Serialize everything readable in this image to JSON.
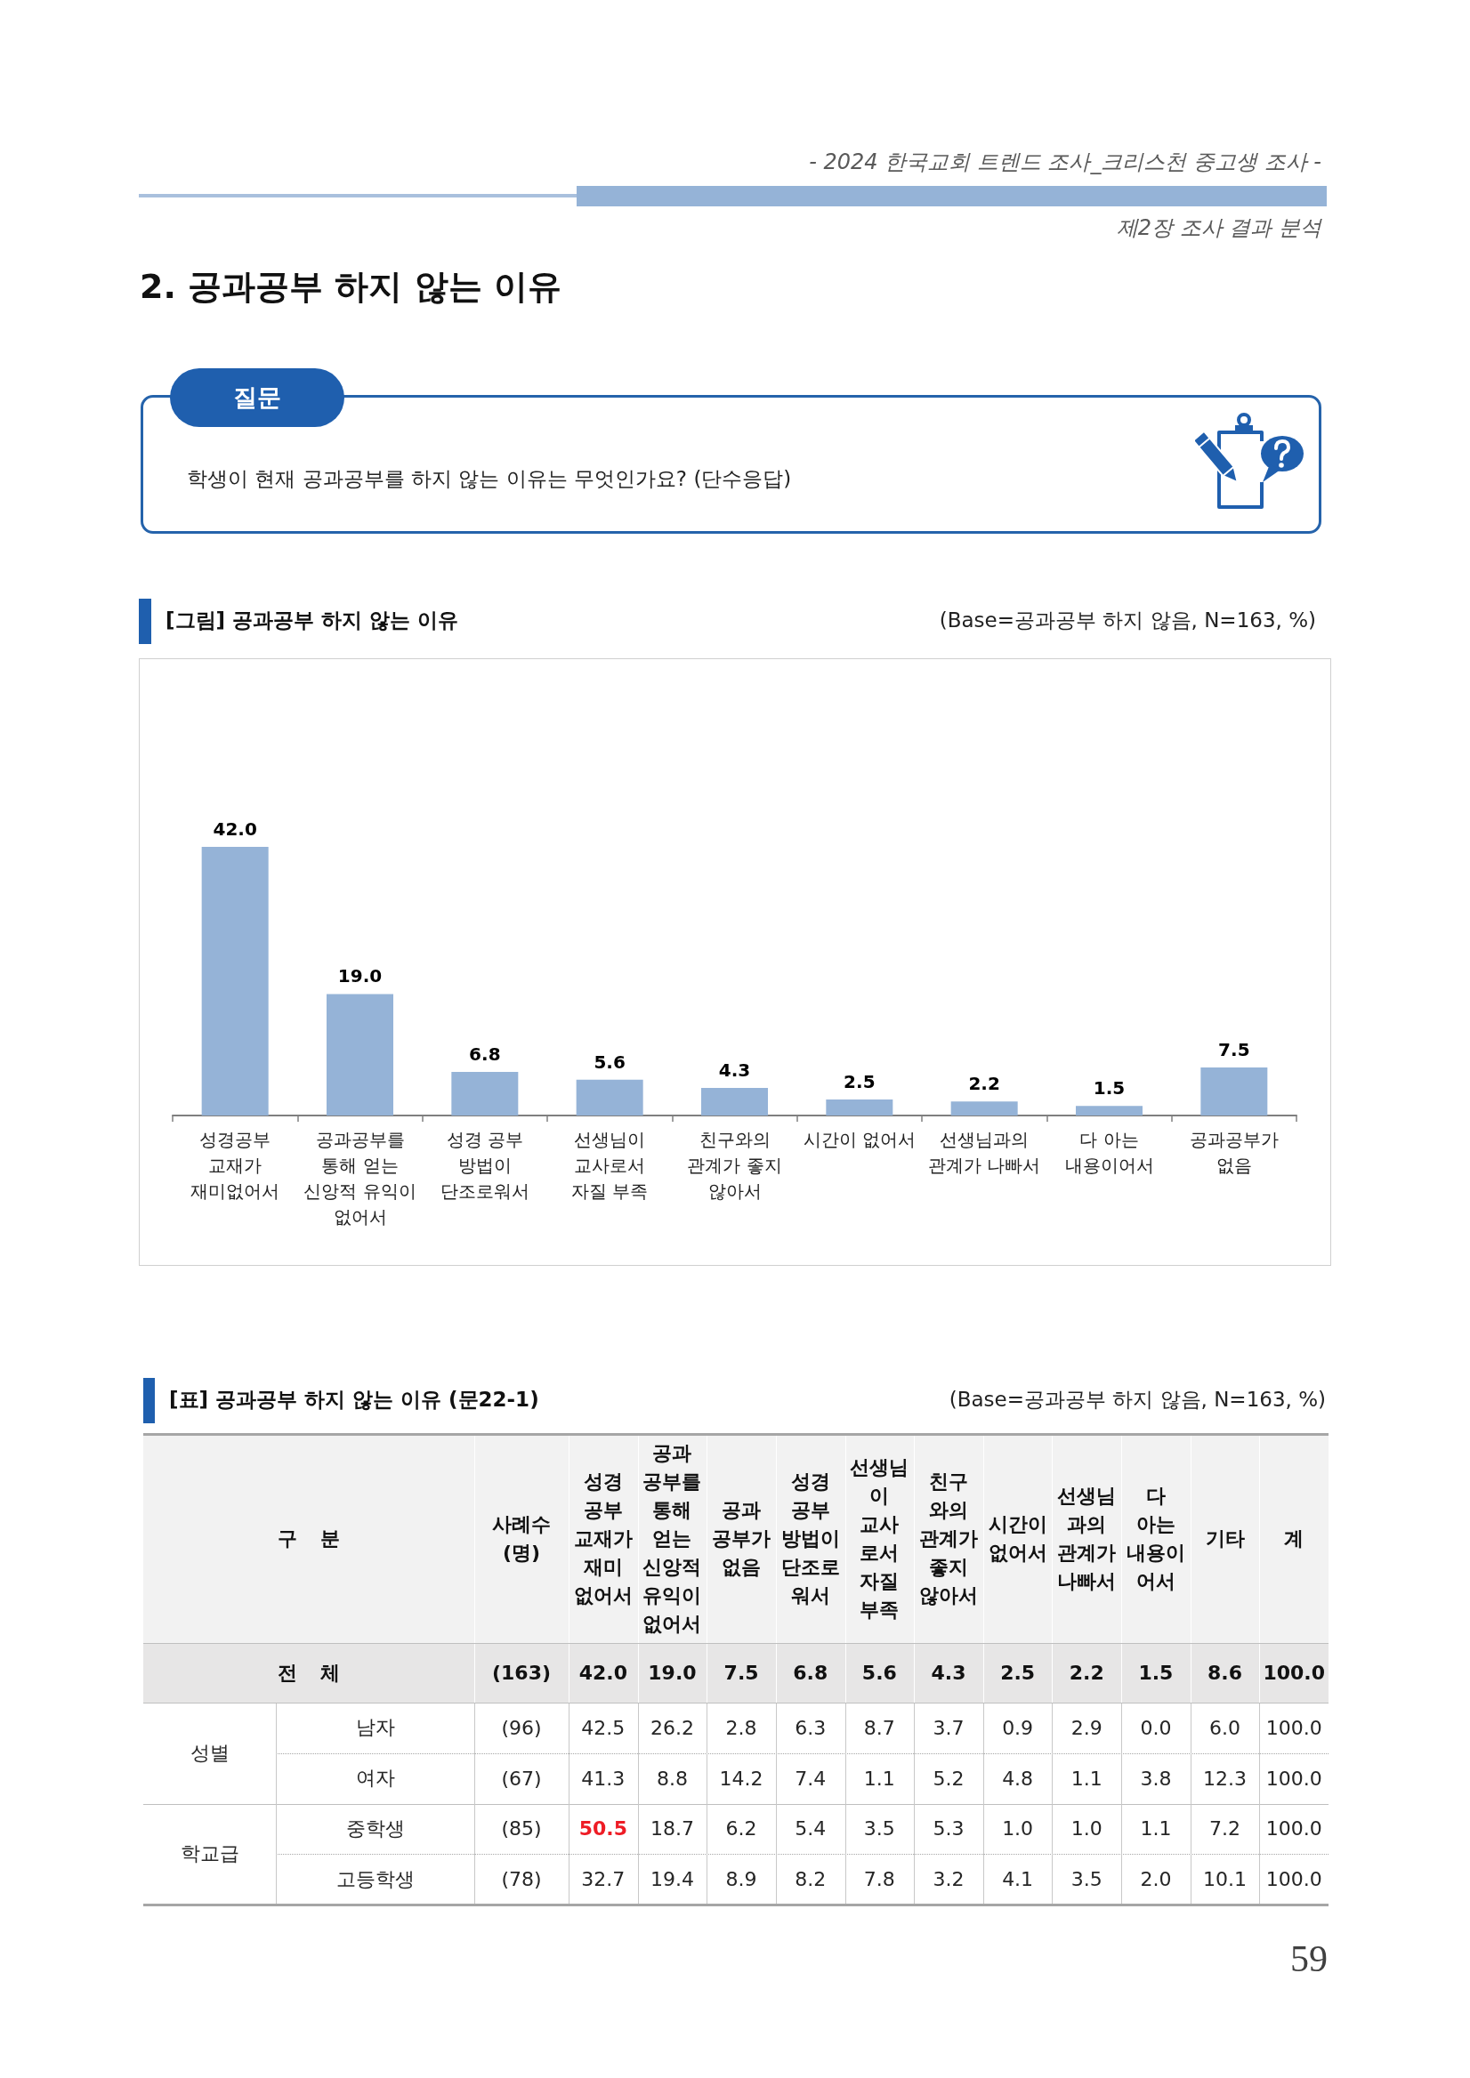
{
  "chart_data": [
    {
      "type": "bar",
      "title": "[그림] 공과공부 하지 않는 이유",
      "subtitle": "(Base=공과공부 하지 않음, N=163, %)",
      "annotations": [
        "- 2024 한국교회 트렌드 조사_크리스천 중고생 조사 -",
        "제2장 조사 결과 분석",
        "2. 공과공부 하지 않는 이유",
        "질문",
        "학생이 현재 공과공부를 하지 않는 이유는 무엇인가요? (단수응답)"
      ],
      "categories": [
        "성경공부\n교재가\n재미없어서",
        "공과공부를\n통해 얻는\n신앙적 유익이\n없어서",
        "성경 공부\n방법이\n단조로워서",
        "선생님이\n교사로서\n자질 부족",
        "친구와의\n관계가 좋지\n않아서",
        "시간이 없어서",
        "선생님과의\n관계가 나빠서",
        "다 아는\n내용이어서",
        "공과공부가\n없음"
      ],
      "values": [
        42.0,
        19.0,
        6.8,
        5.6,
        4.3,
        2.5,
        2.2,
        1.5,
        7.5
      ],
      "color": "#95b3d7",
      "value_labels": [
        "42.0",
        "19.0",
        "6.8",
        "5.6",
        "4.3",
        "2.5",
        "2.2",
        "1.5",
        "7.5"
      ]
    },
    {
      "type": "other",
      "title": "[표] 공과공부 하지 않는 이유 (문22-1)",
      "subtitle": "(Base=공과공부 하지 않음, N=163, %)",
      "annotations": [
        "구 분",
        "성별",
        "학교급",
        "59"
      ],
      "categories": [
        "사례수\n(명)",
        "성경\n공부\n교재가\n재미\n없어서",
        "공과\n공부를\n통해\n얻는\n신앙적\n유익이\n없어서",
        "공과\n공부가\n없음",
        "성경\n공부\n방법이\n단조로\n워서",
        "선생님\n이\n교사\n로서\n자질\n부족",
        "친구\n와의\n관계가\n좋지\n않아서",
        "시간이\n없어서",
        "선생님\n과의\n관계가\n나빠서",
        "다\n아는\n내용이\n어서",
        "기타",
        "계"
      ],
      "y_categories": [
        "전 체",
        "남자",
        "여자",
        "중학생",
        "고등학생"
      ],
      "cell_labels": [
        [
          "(163)",
          "42.0",
          "19.0",
          "7.5",
          "6.8",
          "5.6",
          "4.3",
          "2.5",
          "2.2",
          "1.5",
          "8.6",
          "100.0"
        ],
        [
          "(96)",
          "42.5",
          "26.2",
          "2.8",
          "6.3",
          "8.7",
          "3.7",
          "0.9",
          "2.9",
          "0.0",
          "6.0",
          "100.0"
        ],
        [
          "(67)",
          "41.3",
          "8.8",
          "14.2",
          "7.4",
          "1.1",
          "5.2",
          "4.8",
          "1.1",
          "3.8",
          "12.3",
          "100.0"
        ],
        [
          "(85)",
          "50.5",
          "18.7",
          "6.2",
          "5.4",
          "3.5",
          "5.3",
          "1.0",
          "1.0",
          "1.1",
          "7.2",
          "100.0"
        ],
        [
          "(78)",
          "32.7",
          "19.4",
          "8.9",
          "8.2",
          "7.8",
          "3.2",
          "4.1",
          "3.5",
          "2.0",
          "10.1",
          "100.0"
        ]
      ],
      "colors": [
        [
          "#111111",
          "#111111",
          "#111111",
          "#111111",
          "#111111",
          "#111111",
          "#111111",
          "#111111",
          "#111111",
          "#111111",
          "#111111",
          "#111111"
        ],
        [
          "#262626",
          "#262626",
          "#262626",
          "#262626",
          "#262626",
          "#262626",
          "#262626",
          "#262626",
          "#262626",
          "#262626",
          "#262626",
          "#262626"
        ],
        [
          "#262626",
          "#262626",
          "#262626",
          "#262626",
          "#262626",
          "#262626",
          "#262626",
          "#262626",
          "#262626",
          "#262626",
          "#262626",
          "#262626"
        ],
        [
          "#262626",
          "#ee1c25",
          "#262626",
          "#262626",
          "#262626",
          "#262626",
          "#262626",
          "#262626",
          "#262626",
          "#262626",
          "#262626",
          "#262626"
        ],
        [
          "#262626",
          "#262626",
          "#262626",
          "#262626",
          "#262626",
          "#262626",
          "#262626",
          "#262626",
          "#262626",
          "#262626",
          "#262626",
          "#262626"
        ]
      ]
    }
  ]
}
